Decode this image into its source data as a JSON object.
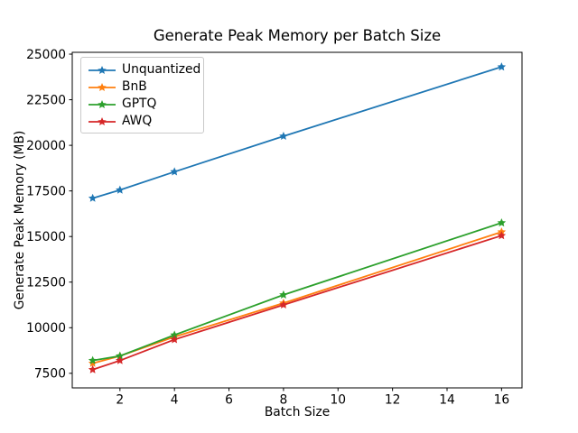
{
  "chart_data": {
    "type": "line",
    "title": "Generate Peak Memory per Batch Size",
    "xlabel": "Batch Size",
    "ylabel": "Generate Peak Memory (MB)",
    "x": [
      1,
      2,
      4,
      8,
      16
    ],
    "series": [
      {
        "name": "Unquantized",
        "color": "#1f77b4",
        "values": [
          17100,
          17550,
          18550,
          20500,
          24300
        ]
      },
      {
        "name": "BnB",
        "color": "#ff7f0e",
        "values": [
          8050,
          8450,
          9500,
          11350,
          15250
        ]
      },
      {
        "name": "GPTQ",
        "color": "#2ca02c",
        "values": [
          8200,
          8450,
          9600,
          11800,
          15750
        ]
      },
      {
        "name": "AWQ",
        "color": "#d62728",
        "values": [
          7700,
          8200,
          9350,
          11250,
          15050
        ]
      }
    ],
    "xticks": [
      2,
      4,
      6,
      8,
      10,
      12,
      14,
      16
    ],
    "yticks": [
      7500,
      10000,
      12500,
      15000,
      17500,
      20000,
      22500,
      25000
    ],
    "xlim": [
      0.25,
      16.75
    ],
    "ylim": [
      6700,
      25100
    ],
    "marker": "star",
    "line_width": 1.8,
    "legend_position": "upper left",
    "grid": false,
    "axis_color": "#000000",
    "background_color": "#ffffff"
  }
}
